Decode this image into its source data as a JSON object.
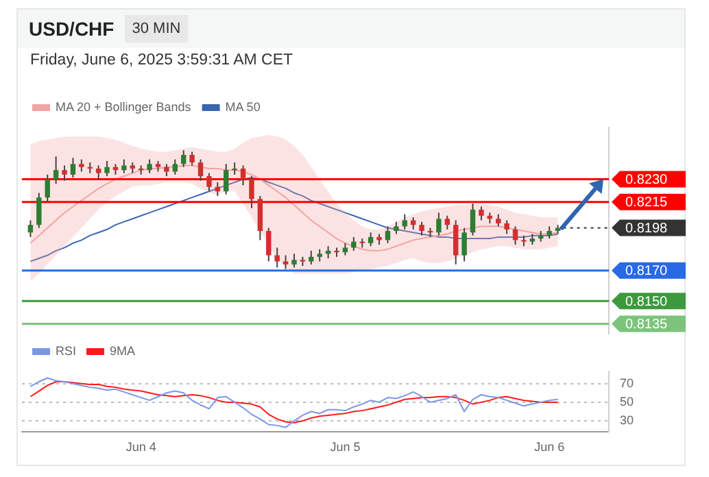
{
  "chart_data": [
    {
      "type": "candlestick",
      "title": "USD/CHF",
      "subtitle": "30 MIN",
      "annotations": [
        "Friday, June 6, 2025 3:59:31 AM CET"
      ],
      "x": [
        "2025-06-03T11:00",
        "2025-06-03T12:00",
        "2025-06-03T13:00",
        "2025-06-03T14:00",
        "2025-06-03T15:00",
        "2025-06-03T16:00",
        "2025-06-03T17:00",
        "2025-06-03T18:00",
        "2025-06-03T19:00",
        "2025-06-03T20:00",
        "2025-06-03T21:00",
        "2025-06-03T22:00",
        "2025-06-03T23:00",
        "2025-06-04T00:00",
        "2025-06-04T01:00",
        "2025-06-04T02:00",
        "2025-06-04T03:00",
        "2025-06-04T04:00",
        "2025-06-04T05:00",
        "2025-06-04T06:00",
        "2025-06-04T07:00",
        "2025-06-04T08:00",
        "2025-06-04T09:00",
        "2025-06-04T10:00",
        "2025-06-04T11:00",
        "2025-06-04T12:00",
        "2025-06-04T13:00",
        "2025-06-04T14:00",
        "2025-06-04T15:00",
        "2025-06-04T16:00",
        "2025-06-04T17:00",
        "2025-06-04T18:00",
        "2025-06-04T19:00",
        "2025-06-04T20:00",
        "2025-06-04T21:00",
        "2025-06-04T22:00",
        "2025-06-04T23:00",
        "2025-06-05T00:00",
        "2025-06-05T01:00",
        "2025-06-05T02:00",
        "2025-06-05T03:00",
        "2025-06-05T04:00",
        "2025-06-05T05:00",
        "2025-06-05T06:00",
        "2025-06-05T07:00",
        "2025-06-05T08:00",
        "2025-06-05T09:00",
        "2025-06-05T10:00",
        "2025-06-05T11:00",
        "2025-06-05T12:00",
        "2025-06-05T13:00",
        "2025-06-05T14:00",
        "2025-06-05T15:00",
        "2025-06-05T16:00",
        "2025-06-05T17:00",
        "2025-06-05T18:00",
        "2025-06-05T19:00",
        "2025-06-05T20:00",
        "2025-06-05T21:00",
        "2025-06-05T22:00",
        "2025-06-05T23:00",
        "2025-06-06T00:00",
        "2025-06-06T01:00"
      ],
      "ohlc": [
        [
          0.8195,
          0.8203,
          0.8192,
          0.82
        ],
        [
          0.82,
          0.8221,
          0.8198,
          0.8218
        ],
        [
          0.8218,
          0.8233,
          0.8215,
          0.823
        ],
        [
          0.823,
          0.8245,
          0.8227,
          0.8236
        ],
        [
          0.8236,
          0.8239,
          0.8229,
          0.8233
        ],
        [
          0.8233,
          0.8244,
          0.8231,
          0.824
        ],
        [
          0.824,
          0.8243,
          0.8235,
          0.8238
        ],
        [
          0.8238,
          0.8241,
          0.8234,
          0.8237
        ],
        [
          0.8237,
          0.8239,
          0.823,
          0.8234
        ],
        [
          0.8234,
          0.8242,
          0.8232,
          0.8238
        ],
        [
          0.8238,
          0.824,
          0.8233,
          0.8236
        ],
        [
          0.8236,
          0.8243,
          0.8234,
          0.8239
        ],
        [
          0.8239,
          0.8241,
          0.8234,
          0.8237
        ],
        [
          0.8237,
          0.8239,
          0.8233,
          0.8236
        ],
        [
          0.8236,
          0.8243,
          0.8234,
          0.824
        ],
        [
          0.824,
          0.8242,
          0.8235,
          0.8238
        ],
        [
          0.8238,
          0.824,
          0.8232,
          0.8235
        ],
        [
          0.8235,
          0.8243,
          0.8233,
          0.824
        ],
        [
          0.824,
          0.8249,
          0.8238,
          0.8246
        ],
        [
          0.8246,
          0.8248,
          0.8239,
          0.8241
        ],
        [
          0.8241,
          0.8243,
          0.8229,
          0.8232
        ],
        [
          0.8232,
          0.8234,
          0.8222,
          0.8225
        ],
        [
          0.8225,
          0.8228,
          0.8219,
          0.8222
        ],
        [
          0.8222,
          0.824,
          0.822,
          0.8236
        ],
        [
          0.8236,
          0.8241,
          0.8233,
          0.8237
        ],
        [
          0.8237,
          0.8239,
          0.8226,
          0.823
        ],
        [
          0.823,
          0.8232,
          0.8211,
          0.8217
        ],
        [
          0.8217,
          0.8219,
          0.819,
          0.8196
        ],
        [
          0.8196,
          0.8198,
          0.8176,
          0.818
        ],
        [
          0.818,
          0.8185,
          0.8172,
          0.8176
        ],
        [
          0.8176,
          0.818,
          0.8171,
          0.8174
        ],
        [
          0.8174,
          0.8181,
          0.8172,
          0.8177
        ],
        [
          0.8177,
          0.8179,
          0.8173,
          0.8176
        ],
        [
          0.8176,
          0.8183,
          0.8174,
          0.8179
        ],
        [
          0.8179,
          0.8184,
          0.8176,
          0.8181
        ],
        [
          0.8181,
          0.8186,
          0.8178,
          0.8183
        ],
        [
          0.8183,
          0.8185,
          0.8179,
          0.8182
        ],
        [
          0.8182,
          0.8188,
          0.818,
          0.8185
        ],
        [
          0.8185,
          0.8192,
          0.8183,
          0.8189
        ],
        [
          0.8189,
          0.8191,
          0.8185,
          0.8188
        ],
        [
          0.8188,
          0.8195,
          0.8186,
          0.8192
        ],
        [
          0.8192,
          0.8194,
          0.8187,
          0.819
        ],
        [
          0.819,
          0.8199,
          0.8188,
          0.8196
        ],
        [
          0.8196,
          0.8202,
          0.8194,
          0.8199
        ],
        [
          0.8199,
          0.8207,
          0.8197,
          0.8203
        ],
        [
          0.8203,
          0.8205,
          0.8197,
          0.82
        ],
        [
          0.82,
          0.8202,
          0.8193,
          0.8196
        ],
        [
          0.8196,
          0.8198,
          0.8192,
          0.8195
        ],
        [
          0.8195,
          0.8208,
          0.8193,
          0.8204
        ],
        [
          0.8204,
          0.8206,
          0.8197,
          0.82
        ],
        [
          0.82,
          0.8203,
          0.8174,
          0.818
        ],
        [
          0.818,
          0.8198,
          0.8176,
          0.8195
        ],
        [
          0.8195,
          0.8214,
          0.8193,
          0.821
        ],
        [
          0.821,
          0.8212,
          0.8203,
          0.8206
        ],
        [
          0.8206,
          0.8208,
          0.8201,
          0.8204
        ],
        [
          0.8204,
          0.8207,
          0.8199,
          0.8201
        ],
        [
          0.8201,
          0.8203,
          0.8194,
          0.8197
        ],
        [
          0.8197,
          0.8199,
          0.8187,
          0.819
        ],
        [
          0.819,
          0.8193,
          0.8186,
          0.8189
        ],
        [
          0.8189,
          0.8194,
          0.8187,
          0.8191
        ],
        [
          0.8191,
          0.8196,
          0.8189,
          0.8193
        ],
        [
          0.8193,
          0.8199,
          0.8191,
          0.8196
        ],
        [
          0.8196,
          0.82,
          0.8194,
          0.8198
        ]
      ],
      "series": [
        {
          "type": "line",
          "name": "MA 20 + Bollinger Bands",
          "color": "#f4a3a3",
          "values": [
            0.8188,
            0.8193,
            0.8198,
            0.8203,
            0.8208,
            0.8212,
            0.8216,
            0.822,
            0.8224,
            0.8227,
            0.823,
            0.8232,
            0.8234,
            0.8236,
            0.8237,
            0.8237,
            0.8238,
            0.8238,
            0.8239,
            0.8239,
            0.8238,
            0.8237,
            0.8237,
            0.8236,
            0.8236,
            0.8235,
            0.8233,
            0.823,
            0.8226,
            0.8222,
            0.8218,
            0.8213,
            0.8208,
            0.8203,
            0.8199,
            0.8195,
            0.8191,
            0.8188,
            0.8186,
            0.8184,
            0.8183,
            0.8183,
            0.8184,
            0.8186,
            0.8188,
            0.819,
            0.8191,
            0.8192,
            0.8193,
            0.8194,
            0.8196,
            0.8197,
            0.8198,
            0.8199,
            0.8199,
            0.8199,
            0.8198,
            0.8197,
            0.8196,
            0.8195,
            0.8194,
            0.8194,
            0.8195
          ],
          "upper": [
            0.8253,
            0.8255,
            0.8256,
            0.8257,
            0.8258,
            0.8258,
            0.8258,
            0.8258,
            0.8258,
            0.8257,
            0.8256,
            0.8254,
            0.8252,
            0.825,
            0.8249,
            0.8248,
            0.8248,
            0.8249,
            0.825,
            0.8251,
            0.825,
            0.8249,
            0.8248,
            0.8248,
            0.825,
            0.8254,
            0.8257,
            0.8258,
            0.8259,
            0.8258,
            0.8256,
            0.8252,
            0.8246,
            0.8238,
            0.823,
            0.8222,
            0.8214,
            0.8208,
            0.8203,
            0.8199,
            0.8197,
            0.8197,
            0.8199,
            0.8202,
            0.8205,
            0.8207,
            0.8209,
            0.821,
            0.8211,
            0.8212,
            0.8213,
            0.8213,
            0.8214,
            0.8214,
            0.8213,
            0.8212,
            0.821,
            0.8208,
            0.8207,
            0.8206,
            0.8205,
            0.8205,
            0.8205
          ],
          "lower": [
            0.8163,
            0.8168,
            0.8174,
            0.818,
            0.8186,
            0.8192,
            0.8198,
            0.8204,
            0.821,
            0.8215,
            0.8219,
            0.8222,
            0.8225,
            0.8226,
            0.8226,
            0.8227,
            0.8228,
            0.8228,
            0.8228,
            0.8227,
            0.8224,
            0.8221,
            0.822,
            0.8222,
            0.8222,
            0.8214,
            0.8205,
            0.8196,
            0.8186,
            0.8178,
            0.8172,
            0.8168,
            0.8168,
            0.8168,
            0.8168,
            0.8168,
            0.8168,
            0.8168,
            0.8169,
            0.817,
            0.8171,
            0.8172,
            0.8173,
            0.8175,
            0.8177,
            0.8178,
            0.8176,
            0.8175,
            0.8175,
            0.8176,
            0.8178,
            0.818,
            0.8182,
            0.8184,
            0.8185,
            0.8186,
            0.8186,
            0.8185,
            0.8184,
            0.8184,
            0.8184,
            0.8185,
            0.8186
          ]
        },
        {
          "type": "line",
          "name": "MA 50",
          "color": "#3a66b0",
          "values": [
            0.8176,
            0.8178,
            0.818,
            0.8183,
            0.8185,
            0.8188,
            0.819,
            0.8193,
            0.8195,
            0.8197,
            0.82,
            0.8202,
            0.8204,
            0.8206,
            0.8208,
            0.821,
            0.8212,
            0.8214,
            0.8216,
            0.8218,
            0.822,
            0.8222,
            0.8224,
            0.8226,
            0.8228,
            0.823,
            0.8231,
            0.823,
            0.8228,
            0.8226,
            0.8224,
            0.8221,
            0.8219,
            0.8216,
            0.8214,
            0.8212,
            0.821,
            0.8208,
            0.8206,
            0.8204,
            0.8202,
            0.82,
            0.8198,
            0.8197,
            0.8196,
            0.8195,
            0.8194,
            0.8193,
            0.8192,
            0.8192,
            0.8191,
            0.8191,
            0.8191,
            0.8191,
            0.8191,
            0.8192,
            0.8192,
            0.8192,
            0.8192,
            0.8193,
            0.8193,
            0.8193,
            0.8194
          ]
        }
      ],
      "ref_lines": [
        {
          "axis": "y",
          "value": 0.823,
          "label": "0.8230",
          "color": "#ff0000",
          "line_style": "solid"
        },
        {
          "axis": "y",
          "value": 0.8215,
          "label": "0.8215",
          "color": "#ff0000",
          "line_style": "solid"
        },
        {
          "axis": "y",
          "value": 0.8198,
          "label": "0.8198",
          "color": "#333333",
          "line_style": "dotted"
        },
        {
          "axis": "y",
          "value": 0.817,
          "label": "0.8170",
          "color": "#2969e6",
          "line_style": "solid"
        },
        {
          "axis": "y",
          "value": 0.815,
          "label": "0.8150",
          "color": "#3c9a3c",
          "line_style": "solid"
        },
        {
          "axis": "y",
          "value": 0.8135,
          "label": "0.8135",
          "color": "#7cc47c",
          "line_style": "solid"
        }
      ],
      "xlim": [
        "2025-06-03T10:00",
        "2025-06-06T07:00"
      ],
      "ylim": [
        0.8128,
        0.8264
      ],
      "legend": "top left"
    },
    {
      "type": "line",
      "x": [
        "2025-06-03T11:00",
        "2025-06-03T12:00",
        "2025-06-03T13:00",
        "2025-06-03T14:00",
        "2025-06-03T15:00",
        "2025-06-03T16:00",
        "2025-06-03T17:00",
        "2025-06-03T18:00",
        "2025-06-03T19:00",
        "2025-06-03T20:00",
        "2025-06-03T21:00",
        "2025-06-03T22:00",
        "2025-06-03T23:00",
        "2025-06-04T00:00",
        "2025-06-04T01:00",
        "2025-06-04T02:00",
        "2025-06-04T03:00",
        "2025-06-04T04:00",
        "2025-06-04T05:00",
        "2025-06-04T06:00",
        "2025-06-04T07:00",
        "2025-06-04T08:00",
        "2025-06-04T09:00",
        "2025-06-04T10:00",
        "2025-06-04T11:00",
        "2025-06-04T12:00",
        "2025-06-04T13:00",
        "2025-06-04T14:00",
        "2025-06-04T15:00",
        "2025-06-04T16:00",
        "2025-06-04T17:00",
        "2025-06-04T18:00",
        "2025-06-04T19:00",
        "2025-06-04T20:00",
        "2025-06-04T21:00",
        "2025-06-04T22:00",
        "2025-06-04T23:00",
        "2025-06-05T00:00",
        "2025-06-05T01:00",
        "2025-06-05T02:00",
        "2025-06-05T03:00",
        "2025-06-05T04:00",
        "2025-06-05T05:00",
        "2025-06-05T06:00",
        "2025-06-05T07:00",
        "2025-06-05T08:00",
        "2025-06-05T09:00",
        "2025-06-05T10:00",
        "2025-06-05T11:00",
        "2025-06-05T12:00",
        "2025-06-05T13:00",
        "2025-06-05T14:00",
        "2025-06-05T15:00",
        "2025-06-05T16:00",
        "2025-06-05T17:00",
        "2025-06-05T18:00",
        "2025-06-05T19:00",
        "2025-06-05T20:00",
        "2025-06-05T21:00",
        "2025-06-05T22:00",
        "2025-06-05T23:00",
        "2025-06-06T00:00",
        "2025-06-06T01:00"
      ],
      "series": [
        {
          "name": "RSI",
          "color": "#7b96e6",
          "values": [
            67,
            72,
            76,
            73,
            72,
            70,
            68,
            66,
            65,
            63,
            64,
            61,
            58,
            55,
            52,
            56,
            60,
            62,
            60,
            52,
            47,
            43,
            55,
            56,
            50,
            44,
            37,
            32,
            26,
            25,
            23,
            30,
            36,
            40,
            38,
            42,
            42,
            41,
            45,
            48,
            52,
            50,
            55,
            54,
            57,
            61,
            56,
            50,
            52,
            54,
            58,
            40,
            53,
            58,
            56,
            55,
            52,
            49,
            46,
            48,
            50,
            52,
            53
          ]
        },
        {
          "name": "9MA",
          "color": "#ff1a1a",
          "values": [
            56,
            62,
            68,
            72,
            72,
            71,
            70,
            69,
            69,
            67,
            66,
            64,
            63,
            62,
            60,
            58,
            57,
            56,
            57,
            58,
            57,
            55,
            52,
            50,
            50,
            49,
            48,
            45,
            37,
            32,
            29,
            28,
            30,
            33,
            35,
            36,
            37,
            38,
            40,
            41,
            43,
            45,
            47,
            50,
            53,
            54,
            55,
            55,
            56,
            56,
            55,
            52,
            48,
            50,
            52,
            55,
            56,
            54,
            52,
            51,
            50,
            50,
            50
          ]
        }
      ],
      "xlim": [
        "2025-06-03T10:00",
        "2025-06-06T07:00"
      ],
      "xticks": [
        {
          "value": "2025-06-04",
          "label": "Jun 4"
        },
        {
          "value": "2025-06-05",
          "label": "Jun 5"
        },
        {
          "value": "2025-06-06",
          "label": "Jun 6"
        }
      ],
      "ylim": [
        18,
        83
      ],
      "yticks": [
        30,
        50,
        70
      ],
      "grid": "y",
      "legend": "top left"
    }
  ]
}
